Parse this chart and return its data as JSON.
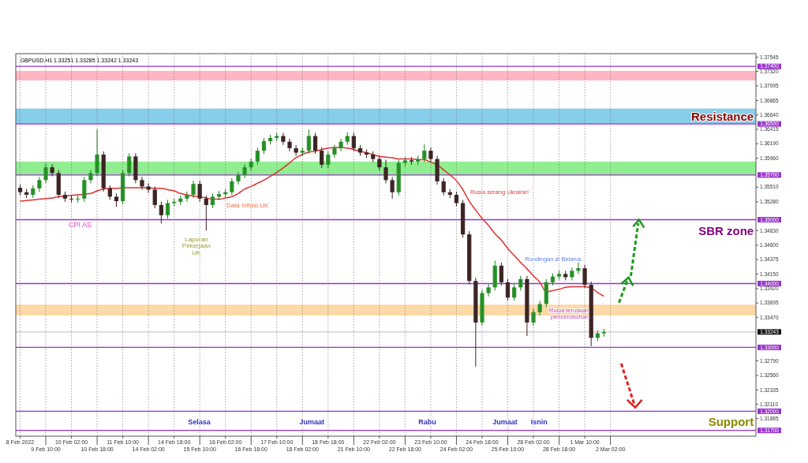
{
  "chart_data": {
    "type": "candlestick",
    "categories": [
      "8 Feb 2022",
      null,
      null,
      null,
      "9 Feb 10:00",
      null,
      null,
      null,
      "10 Feb 02:00",
      null,
      null,
      null,
      "10 Feb 18:00",
      null,
      null,
      null,
      "11 Feb 10:00",
      null,
      null,
      null,
      "14 Feb 02:00",
      null,
      null,
      null,
      "14 Feb 18:00",
      null,
      null,
      null,
      "15 Feb 10:00",
      null,
      null,
      null,
      "16 Feb 02:00",
      null,
      null,
      null,
      "16 Feb 18:00",
      null,
      null,
      null,
      "17 Feb 10:00",
      null,
      null,
      null,
      "18 Feb 02:00",
      null,
      null,
      null,
      "18 Feb 18:00",
      null,
      null,
      null,
      "21 Feb 10:00",
      null,
      null,
      null,
      "22 Feb 02:00",
      null,
      null,
      null,
      "22 Feb 18:00",
      null,
      null,
      null,
      "23 Feb 10:00",
      null,
      null,
      null,
      "24 Feb 02:00",
      null,
      null,
      null,
      "24 Feb 18:00",
      null,
      null,
      null,
      "25 Feb 10:00",
      null,
      null,
      null,
      "28 Feb 02:00",
      null,
      null,
      null,
      "28 Feb 18:00",
      null,
      null,
      null,
      "1 Mar 10:00",
      null,
      null,
      null,
      "2 Mar 02:00",
      null,
      null,
      null,
      null,
      null,
      null,
      null,
      null,
      null,
      null,
      null,
      null,
      null,
      null,
      null,
      null,
      null,
      null,
      null,
      null,
      null,
      null
    ],
    "ohlc": [
      [
        1.355,
        1.3555,
        1.3538,
        1.3543
      ],
      [
        1.3543,
        1.3548,
        1.3534,
        1.3539
      ],
      [
        1.3539,
        1.3554,
        1.3534,
        1.3549
      ],
      [
        1.3549,
        1.3567,
        1.3544,
        1.3562
      ],
      [
        1.3562,
        1.3588,
        1.3557,
        1.3582
      ],
      [
        1.3582,
        1.3587,
        1.3568,
        1.3573
      ],
      [
        1.3573,
        1.3578,
        1.3534,
        1.3539
      ],
      [
        1.3539,
        1.3544,
        1.3528,
        1.3533
      ],
      [
        1.3533,
        1.3538,
        1.3527,
        1.3532
      ],
      [
        1.3532,
        1.3538,
        1.3527,
        1.3533
      ],
      [
        1.3533,
        1.3567,
        1.3528,
        1.3562
      ],
      [
        1.3562,
        1.3578,
        1.3557,
        1.3573
      ],
      [
        1.3573,
        1.3641,
        1.3568,
        1.3602
      ],
      [
        1.3602,
        1.3607,
        1.3544,
        1.3549
      ],
      [
        1.3549,
        1.3554,
        1.3531,
        1.3536
      ],
      [
        1.3536,
        1.3541,
        1.352,
        1.3529
      ],
      [
        1.3529,
        1.3578,
        1.3524,
        1.3573
      ],
      [
        1.3573,
        1.3604,
        1.3568,
        1.3599
      ],
      [
        1.3599,
        1.3604,
        1.3557,
        1.3562
      ],
      [
        1.3562,
        1.3567,
        1.3547,
        1.3552
      ],
      [
        1.3552,
        1.3557,
        1.3542,
        1.3547
      ],
      [
        1.3547,
        1.3552,
        1.3518,
        1.3523
      ],
      [
        1.3523,
        1.3528,
        1.3494,
        1.3507
      ],
      [
        1.3507,
        1.3531,
        1.3502,
        1.3526
      ],
      [
        1.3526,
        1.3533,
        1.3521,
        1.3528
      ],
      [
        1.3528,
        1.3538,
        1.3523,
        1.3533
      ],
      [
        1.3533,
        1.3544,
        1.3528,
        1.3539
      ],
      [
        1.3539,
        1.3561,
        1.3534,
        1.3556
      ],
      [
        1.3556,
        1.3561,
        1.3528,
        1.3533
      ],
      [
        1.3533,
        1.3538,
        1.3483,
        1.3523
      ],
      [
        1.3523,
        1.3541,
        1.3518,
        1.3536
      ],
      [
        1.3536,
        1.3545,
        1.3531,
        1.354
      ],
      [
        1.354,
        1.3548,
        1.3535,
        1.3543
      ],
      [
        1.3543,
        1.3565,
        1.3538,
        1.356
      ],
      [
        1.356,
        1.3575,
        1.3555,
        1.357
      ],
      [
        1.357,
        1.3587,
        1.3565,
        1.3582
      ],
      [
        1.3582,
        1.3596,
        1.3577,
        1.3591
      ],
      [
        1.3591,
        1.3613,
        1.3586,
        1.3608
      ],
      [
        1.3608,
        1.3628,
        1.3603,
        1.3623
      ],
      [
        1.3623,
        1.3633,
        1.3618,
        1.3628
      ],
      [
        1.3628,
        1.3636,
        1.3623,
        1.3631
      ],
      [
        1.3631,
        1.3636,
        1.3617,
        1.3622
      ],
      [
        1.3622,
        1.3627,
        1.3607,
        1.3612
      ],
      [
        1.3612,
        1.3617,
        1.36,
        1.3605
      ],
      [
        1.3605,
        1.3613,
        1.36,
        1.3608
      ],
      [
        1.3608,
        1.3641,
        1.3603,
        1.3631
      ],
      [
        1.3631,
        1.3636,
        1.3603,
        1.3608
      ],
      [
        1.3608,
        1.3613,
        1.3581,
        1.3586
      ],
      [
        1.3586,
        1.3607,
        1.3581,
        1.3602
      ],
      [
        1.3602,
        1.3617,
        1.3597,
        1.3612
      ],
      [
        1.3612,
        1.3627,
        1.3607,
        1.3622
      ],
      [
        1.3622,
        1.3637,
        1.3617,
        1.3631
      ],
      [
        1.3631,
        1.3636,
        1.3607,
        1.3612
      ],
      [
        1.3612,
        1.3617,
        1.36,
        1.3605
      ],
      [
        1.3605,
        1.361,
        1.3597,
        1.3602
      ],
      [
        1.3602,
        1.3607,
        1.359,
        1.3595
      ],
      [
        1.3595,
        1.36,
        1.3577,
        1.3582
      ],
      [
        1.3582,
        1.3594,
        1.3557,
        1.3562
      ],
      [
        1.3562,
        1.3567,
        1.3533,
        1.3543
      ],
      [
        1.3543,
        1.3594,
        1.3538,
        1.3589
      ],
      [
        1.3589,
        1.3598,
        1.3584,
        1.3593
      ],
      [
        1.3593,
        1.3598,
        1.3586,
        1.3591
      ],
      [
        1.3591,
        1.36,
        1.3586,
        1.3595
      ],
      [
        1.3595,
        1.3618,
        1.359,
        1.3608
      ],
      [
        1.3608,
        1.3613,
        1.359,
        1.3595
      ],
      [
        1.3595,
        1.36,
        1.3555,
        1.356
      ],
      [
        1.356,
        1.3565,
        1.3538,
        1.3543
      ],
      [
        1.3543,
        1.3548,
        1.3534,
        1.3539
      ],
      [
        1.3539,
        1.3544,
        1.3521,
        1.3526
      ],
      [
        1.3526,
        1.3531,
        1.3472,
        1.3477
      ],
      [
        1.3477,
        1.3482,
        1.3399,
        1.3404
      ],
      [
        1.3404,
        1.3409,
        1.327,
        1.3339
      ],
      [
        1.3339,
        1.339,
        1.3334,
        1.3385
      ],
      [
        1.3385,
        1.3399,
        1.338,
        1.3394
      ],
      [
        1.3394,
        1.3436,
        1.3389,
        1.3428
      ],
      [
        1.3428,
        1.3433,
        1.3397,
        1.3402
      ],
      [
        1.3402,
        1.3407,
        1.3373,
        1.3378
      ],
      [
        1.3378,
        1.3399,
        1.3373,
        1.3394
      ],
      [
        1.3394,
        1.3412,
        1.3389,
        1.3407
      ],
      [
        1.3407,
        1.3412,
        1.3318,
        1.3339
      ],
      [
        1.3339,
        1.336,
        1.3334,
        1.3355
      ],
      [
        1.3355,
        1.3373,
        1.335,
        1.3368
      ],
      [
        1.3368,
        1.3407,
        1.3363,
        1.3402
      ],
      [
        1.3402,
        1.3416,
        1.3397,
        1.3411
      ],
      [
        1.3411,
        1.342,
        1.3406,
        1.3415
      ],
      [
        1.3415,
        1.342,
        1.3405,
        1.341
      ],
      [
        1.341,
        1.3425,
        1.3405,
        1.342
      ],
      [
        1.342,
        1.3433,
        1.3415,
        1.3424
      ],
      [
        1.3424,
        1.3429,
        1.3393,
        1.3398
      ],
      [
        1.3398,
        1.3403,
        1.3302,
        1.3315
      ],
      [
        1.3315,
        1.3327,
        1.331,
        1.3322
      ],
      [
        1.3322,
        1.3329,
        1.3317,
        1.3324
      ],
      null,
      null,
      null,
      null,
      null,
      null,
      null,
      null,
      null,
      null,
      null,
      null,
      null,
      null,
      null,
      null,
      null,
      null,
      null,
      null,
      null,
      null,
      null
    ],
    "series": [
      {
        "type": "line",
        "color": "#e03030",
        "values": [
          1.3529,
          1.353,
          1.3531,
          1.3532,
          1.3533,
          1.3534,
          1.3536,
          1.3537,
          1.3538,
          1.3539,
          1.354,
          1.3541,
          1.3545,
          1.3548,
          1.3549,
          1.3549,
          1.355,
          1.355,
          1.355,
          1.355,
          1.355,
          1.3549,
          1.3549,
          1.3547,
          1.3545,
          1.3541,
          1.3539,
          1.3537,
          1.3536,
          1.3534,
          1.3532,
          1.3532,
          1.3534,
          1.3536,
          1.3541,
          1.3548,
          1.3552,
          1.3557,
          1.3562,
          1.3568,
          1.3574,
          1.3581,
          1.3589,
          1.3597,
          1.3602,
          1.3606,
          1.3607,
          1.361,
          1.3612,
          1.3613,
          1.3613,
          1.3612,
          1.361,
          1.3607,
          1.3605,
          1.3602,
          1.3599,
          1.3598,
          1.3597,
          1.3595,
          1.3595,
          1.3595,
          1.3594,
          1.3594,
          1.359,
          1.3586,
          1.3578,
          1.357,
          1.3561,
          1.3547,
          1.3529,
          1.3515,
          1.3502,
          1.3491,
          1.3478,
          1.3468,
          1.3455,
          1.3444,
          1.3433,
          1.3423,
          1.3412,
          1.3402,
          1.3387,
          1.3389,
          1.3391,
          1.3394,
          1.3395,
          1.3395,
          1.3395,
          1.3393,
          1.3386,
          1.338,
          null,
          null,
          null,
          null,
          null,
          null,
          null,
          null,
          null,
          null,
          null,
          null,
          null,
          null,
          null,
          null,
          null,
          null,
          null,
          null,
          null,
          null,
          null
        ]
      }
    ],
    "ylim": [
      1.3161,
      1.376
    ],
    "yticks": [
      {
        "value": 1.37545,
        "label": "1.37545"
      },
      {
        "value": 1.3732,
        "label": "1.37320"
      },
      {
        "value": 1.37095,
        "label": "1.37095"
      },
      {
        "value": 1.36865,
        "label": "1.36865"
      },
      {
        "value": 1.3664,
        "label": "1.36640"
      },
      {
        "value": 1.36415,
        "label": "1.36415"
      },
      {
        "value": 1.3619,
        "label": "1.36190"
      },
      {
        "value": 1.3596,
        "label": "1.35960"
      },
      {
        "value": 1.3551,
        "label": "1.35510"
      },
      {
        "value": 1.3528,
        "label": "1.35280"
      },
      {
        "value": 1.3483,
        "label": "1.34830"
      },
      {
        "value": 1.346,
        "label": "1.34600"
      },
      {
        "value": 1.34375,
        "label": "1.34375"
      },
      {
        "value": 1.3415,
        "label": "1.34150"
      },
      {
        "value": 1.3392,
        "label": "1.33920"
      },
      {
        "value": 1.33695,
        "label": "1.33695"
      },
      {
        "value": 1.3347,
        "label": "1.33470"
      },
      {
        "value": 1.3279,
        "label": "1.32790"
      },
      {
        "value": 1.3256,
        "label": "1.32560"
      },
      {
        "value": 1.32335,
        "label": "1.32335"
      },
      {
        "value": 1.3211,
        "label": "1.32110"
      },
      {
        "value": 1.31885,
        "label": "1.31885"
      }
    ],
    "grid": "x",
    "bands": [
      {
        "axis": "y",
        "from": 1.3718,
        "to": 1.3733,
        "color": "#ffb6c1"
      },
      {
        "axis": "y",
        "from": 1.365,
        "to": 1.3674,
        "color": "#87ceeb"
      },
      {
        "axis": "y",
        "from": 1.357,
        "to": 1.3591,
        "color": "#90ee90"
      },
      {
        "axis": "y",
        "from": 1.335,
        "to": 1.3367,
        "color": "#fdd9a8"
      }
    ],
    "ref_lines": [
      {
        "axis": "y",
        "value": 1.374,
        "label": "1.37400",
        "color": "#9933cc"
      },
      {
        "axis": "y",
        "value": 1.365,
        "label": "1.36500",
        "color": "#9933cc"
      },
      {
        "axis": "y",
        "value": 1.357,
        "label": "1.35700",
        "color": "#9933cc"
      },
      {
        "axis": "y",
        "value": 1.35,
        "label": "1.35000",
        "color": "#9933cc"
      },
      {
        "axis": "y",
        "value": 1.34,
        "label": "1.34000",
        "color": "#9933cc"
      },
      {
        "axis": "y",
        "value": 1.33243,
        "label": "1.33243",
        "color": "#c8c8c8"
      },
      {
        "axis": "y",
        "value": 1.33,
        "label": "1.33000",
        "color": "#9933cc"
      },
      {
        "axis": "y",
        "value": 1.32,
        "label": "1.32000",
        "color": "#9933cc"
      },
      {
        "axis": "y",
        "value": 1.317,
        "label": "1.31700",
        "color": "#9933cc"
      }
    ],
    "annotations": [
      "GBPUSD,H1 1.33251 1.33285 1.33242 1.33243",
      "CPI AS",
      "Laporan Pekerjaan UK",
      "Data Inflasi UK",
      "Rusia serang Ukraine!",
      "Rundingan di Belarus",
      "Rusia teruskan pencerobohan",
      "Selasa",
      "Jumaat",
      "Rabu",
      "Jumaat",
      "Isnin",
      "Resistance",
      "SBR zone",
      "Support"
    ]
  }
}
